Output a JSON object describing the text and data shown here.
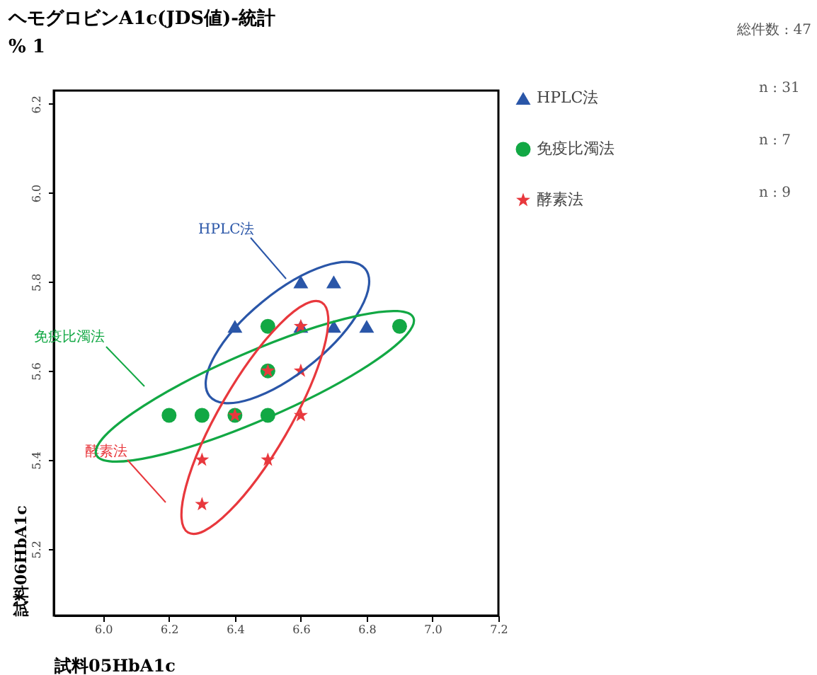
{
  "chart_data": {
    "type": "scatter",
    "title": "ヘモグロビンA1c(JDS値)-統計",
    "subtitle": "% 1",
    "xlabel": "試料05HbA1c",
    "ylabel": "試料06HbA1c",
    "xlim": [
      5.85,
      7.2
    ],
    "ylim": [
      5.05,
      6.23
    ],
    "xticks": [
      {
        "value": 6,
        "label": "6.0"
      },
      {
        "value": 6.2,
        "label": "6.2"
      },
      {
        "value": 6.4,
        "label": "6.4"
      },
      {
        "value": 6.6,
        "label": "6.6"
      },
      {
        "value": 6.8,
        "label": "6.8"
      },
      {
        "value": 7,
        "label": "7.0"
      },
      {
        "value": 7.2,
        "label": "7.2"
      }
    ],
    "yticks": [
      {
        "value": 5.2,
        "label": "5.2"
      },
      {
        "value": 5.4,
        "label": "5.4"
      },
      {
        "value": 5.6,
        "label": "5.6"
      },
      {
        "value": 5.8,
        "label": "5.8"
      },
      {
        "value": 6,
        "label": "6.0"
      },
      {
        "value": 6.2,
        "label": "6.2"
      }
    ],
    "legend": "right",
    "series": [
      {
        "name": "HPLC法",
        "color": "#2a56a8",
        "marker": "triangle",
        "x": [
          6.6,
          6.7,
          6.4,
          6.6,
          6.7,
          6.8
        ],
        "values": [
          5.8,
          5.8,
          5.7,
          5.7,
          5.7,
          5.7
        ]
      },
      {
        "name": "免疫比濁法",
        "color": "#12a844",
        "marker": "circle",
        "x": [
          6.2,
          6.3,
          6.4,
          6.5,
          6.5,
          6.5,
          6.9
        ],
        "values": [
          5.5,
          5.5,
          5.5,
          5.5,
          5.6,
          5.7,
          5.7
        ]
      },
      {
        "name": "酵素法",
        "color": "#e8383d",
        "marker": "star",
        "x": [
          6.6,
          6.5,
          6.6,
          6.4,
          6.6,
          6.3,
          6.5,
          6.3
        ],
        "values": [
          5.7,
          5.6,
          5.6,
          5.5,
          5.5,
          5.4,
          5.4,
          5.3
        ]
      }
    ],
    "annotations": [
      "総件数 : 47",
      "HPLC法",
      "免疫比濁法",
      "酵素法",
      "n : 31",
      "n : 7",
      "n : 9"
    ]
  }
}
